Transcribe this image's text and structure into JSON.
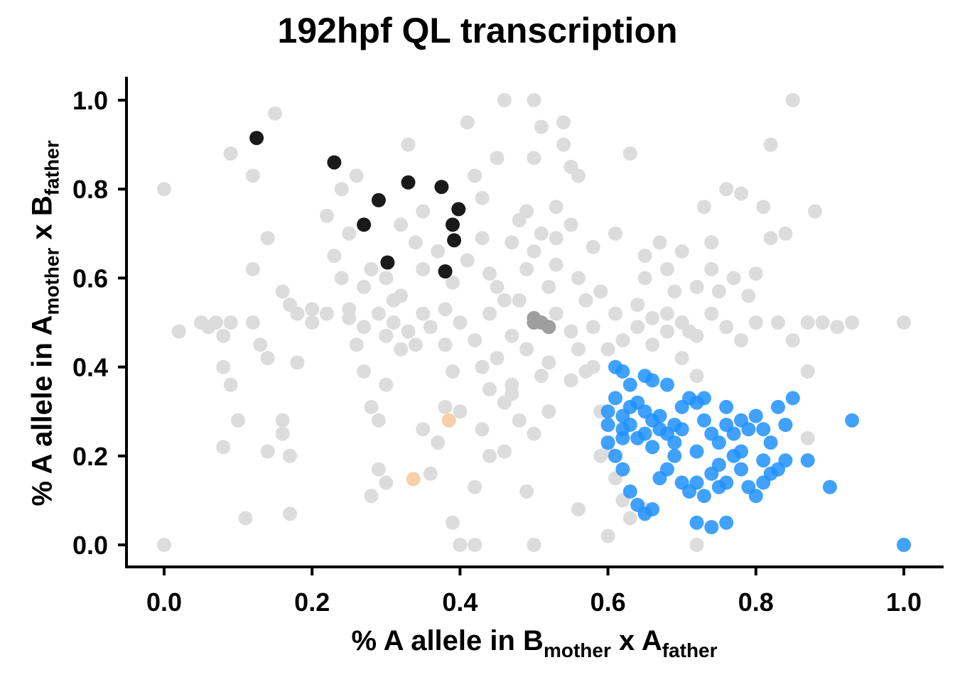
{
  "chart_data": {
    "type": "scatter",
    "title": "192hpf QL transcription",
    "xlabel": {
      "pre": "% A allele in B",
      "sub1": "mother",
      "mid": " x A",
      "sub2": "father"
    },
    "ylabel": {
      "pre": "% A allele in A",
      "sub1": "mother",
      "mid": " x B",
      "sub2": "father"
    },
    "xlim": [
      -0.06,
      1.06
    ],
    "ylim": [
      -0.05,
      1.05
    ],
    "xticks": [
      "0.0",
      "0.2",
      "0.4",
      "0.6",
      "0.8",
      "1.0"
    ],
    "yticks": [
      "0.0",
      "0.2",
      "0.4",
      "0.6",
      "0.8",
      "1.0"
    ],
    "grid": false,
    "legend": "none",
    "colors": {
      "background_points": "#dcdcdc",
      "dark_points": "#1a1a1a",
      "blue_points": "#1e90ff",
      "peach_points": "#f8cfa8"
    },
    "series": [
      {
        "group": "background",
        "color": "#dcdcdc",
        "points": [
          [
            0.0,
            0.8
          ],
          [
            0.0,
            0.0
          ],
          [
            0.02,
            0.48
          ],
          [
            0.05,
            0.5
          ],
          [
            0.06,
            0.49
          ],
          [
            0.07,
            0.5
          ],
          [
            0.08,
            0.47
          ],
          [
            0.09,
            0.5
          ],
          [
            0.08,
            0.4
          ],
          [
            0.09,
            0.36
          ],
          [
            0.08,
            0.22
          ],
          [
            0.1,
            0.28
          ],
          [
            0.09,
            0.88
          ],
          [
            0.12,
            0.83
          ],
          [
            0.15,
            0.97
          ],
          [
            0.12,
            0.5
          ],
          [
            0.12,
            0.62
          ],
          [
            0.13,
            0.45
          ],
          [
            0.14,
            0.42
          ],
          [
            0.14,
            0.69
          ],
          [
            0.14,
            0.21
          ],
          [
            0.16,
            0.28
          ],
          [
            0.16,
            0.25
          ],
          [
            0.17,
            0.2
          ],
          [
            0.16,
            0.57
          ],
          [
            0.17,
            0.54
          ],
          [
            0.18,
            0.52
          ],
          [
            0.18,
            0.41
          ],
          [
            0.2,
            0.53
          ],
          [
            0.11,
            0.06
          ],
          [
            0.17,
            0.07
          ],
          [
            0.2,
            0.5
          ],
          [
            0.22,
            0.52
          ],
          [
            0.22,
            0.74
          ],
          [
            0.23,
            0.65
          ],
          [
            0.24,
            0.6
          ],
          [
            0.24,
            0.8
          ],
          [
            0.25,
            0.7
          ],
          [
            0.26,
            0.83
          ],
          [
            0.25,
            0.53
          ],
          [
            0.27,
            0.58
          ],
          [
            0.28,
            0.62
          ],
          [
            0.27,
            0.39
          ],
          [
            0.28,
            0.31
          ],
          [
            0.29,
            0.28
          ],
          [
            0.3,
            0.36
          ],
          [
            0.29,
            0.17
          ],
          [
            0.28,
            0.11
          ],
          [
            0.3,
            0.14
          ],
          [
            0.31,
            0.55
          ],
          [
            0.32,
            0.44
          ],
          [
            0.32,
            0.72
          ],
          [
            0.33,
            0.9
          ],
          [
            0.34,
            0.68
          ],
          [
            0.35,
            0.75
          ],
          [
            0.35,
            0.26
          ],
          [
            0.36,
            0.16
          ],
          [
            0.37,
            0.23
          ],
          [
            0.38,
            0.31
          ],
          [
            0.38,
            0.45
          ],
          [
            0.39,
            0.39
          ],
          [
            0.4,
            0.5
          ],
          [
            0.4,
            0.3
          ],
          [
            0.41,
            0.95
          ],
          [
            0.42,
            0.83
          ],
          [
            0.43,
            0.78
          ],
          [
            0.44,
            0.61
          ],
          [
            0.42,
            0.13
          ],
          [
            0.43,
            0.26
          ],
          [
            0.44,
            0.2
          ],
          [
            0.45,
            0.87
          ],
          [
            0.46,
            0.55
          ],
          [
            0.46,
            0.21
          ],
          [
            0.47,
            0.34
          ],
          [
            0.46,
            1.0
          ],
          [
            0.48,
            0.73
          ],
          [
            0.49,
            0.12
          ],
          [
            0.5,
            1.0
          ],
          [
            0.5,
            0.66
          ],
          [
            0.5,
            0.87
          ],
          [
            0.51,
            0.94
          ],
          [
            0.52,
            0.58
          ],
          [
            0.53,
            0.76
          ],
          [
            0.54,
            0.95
          ],
          [
            0.54,
            0.9
          ],
          [
            0.55,
            0.85
          ],
          [
            0.56,
            0.83
          ],
          [
            0.57,
            0.39
          ],
          [
            0.58,
            0.67
          ],
          [
            0.59,
            0.3
          ],
          [
            0.6,
            0.21
          ],
          [
            0.61,
            0.7
          ],
          [
            0.62,
            0.46
          ],
          [
            0.63,
            0.88
          ],
          [
            0.64,
            0.54
          ],
          [
            0.65,
            0.6
          ],
          [
            0.66,
            0.45
          ],
          [
            0.67,
            0.68
          ],
          [
            0.68,
            0.52
          ],
          [
            0.69,
            0.57
          ],
          [
            0.7,
            0.42
          ],
          [
            0.71,
            0.48
          ],
          [
            0.72,
            0.38
          ],
          [
            0.73,
            0.76
          ],
          [
            0.74,
            0.68
          ],
          [
            0.75,
            0.57
          ],
          [
            0.76,
            0.8
          ],
          [
            0.77,
            0.6
          ],
          [
            0.78,
            0.79
          ],
          [
            0.79,
            0.56
          ],
          [
            0.8,
            0.61
          ],
          [
            0.81,
            0.76
          ],
          [
            0.82,
            0.69
          ],
          [
            0.83,
            0.5
          ],
          [
            0.84,
            0.7
          ],
          [
            0.85,
            0.46
          ],
          [
            0.85,
            1.0
          ],
          [
            0.87,
            0.5
          ],
          [
            0.88,
            0.75
          ],
          [
            0.89,
            0.5
          ],
          [
            0.91,
            0.49
          ],
          [
            0.93,
            0.5
          ],
          [
            1.0,
            0.5
          ],
          [
            0.82,
            0.9
          ],
          [
            0.87,
            0.39
          ],
          [
            0.87,
            0.24
          ],
          [
            0.42,
            0.46
          ],
          [
            0.44,
            0.52
          ],
          [
            0.45,
            0.42
          ],
          [
            0.47,
            0.47
          ],
          [
            0.48,
            0.55
          ],
          [
            0.49,
            0.44
          ],
          [
            0.52,
            0.41
          ],
          [
            0.53,
            0.52
          ],
          [
            0.55,
            0.48
          ],
          [
            0.56,
            0.44
          ],
          [
            0.57,
            0.55
          ],
          [
            0.58,
            0.49
          ],
          [
            0.6,
            0.44
          ],
          [
            0.61,
            0.52
          ],
          [
            0.43,
            0.4
          ],
          [
            0.45,
            0.58
          ],
          [
            0.47,
            0.36
          ],
          [
            0.49,
            0.62
          ],
          [
            0.51,
            0.38
          ],
          [
            0.53,
            0.63
          ],
          [
            0.55,
            0.37
          ],
          [
            0.56,
            0.6
          ],
          [
            0.58,
            0.4
          ],
          [
            0.59,
            0.57
          ],
          [
            0.38,
            0.53
          ],
          [
            0.36,
            0.49
          ],
          [
            0.35,
            0.52
          ],
          [
            0.34,
            0.45
          ],
          [
            0.33,
            0.48
          ],
          [
            0.31,
            0.5
          ],
          [
            0.3,
            0.47
          ],
          [
            0.29,
            0.52
          ],
          [
            0.27,
            0.49
          ],
          [
            0.26,
            0.45
          ],
          [
            0.25,
            0.51
          ],
          [
            0.64,
            0.49
          ],
          [
            0.66,
            0.51
          ],
          [
            0.68,
            0.48
          ],
          [
            0.7,
            0.5
          ],
          [
            0.72,
            0.47
          ],
          [
            0.74,
            0.52
          ],
          [
            0.76,
            0.49
          ],
          [
            0.78,
            0.46
          ],
          [
            0.8,
            0.5
          ],
          [
            0.52,
            0.3
          ],
          [
            0.5,
            0.25
          ],
          [
            0.48,
            0.28
          ],
          [
            0.46,
            0.32
          ],
          [
            0.44,
            0.35
          ],
          [
            0.51,
            0.7
          ],
          [
            0.49,
            0.75
          ],
          [
            0.47,
            0.68
          ],
          [
            0.53,
            0.69
          ],
          [
            0.55,
            0.72
          ],
          [
            0.62,
            0.1
          ],
          [
            0.65,
            0.08
          ],
          [
            0.6,
            0.02
          ],
          [
            0.63,
            0.06
          ],
          [
            0.72,
            0.0
          ],
          [
            0.5,
            0.0
          ],
          [
            0.4,
            0.0
          ],
          [
            0.42,
            0.0
          ],
          [
            0.39,
            0.05
          ],
          [
            0.56,
            0.08
          ],
          [
            0.59,
            0.2
          ],
          [
            0.61,
            0.15
          ],
          [
            0.35,
            0.62
          ],
          [
            0.37,
            0.66
          ],
          [
            0.39,
            0.59
          ],
          [
            0.41,
            0.64
          ],
          [
            0.43,
            0.69
          ],
          [
            0.3,
            0.6
          ],
          [
            0.32,
            0.56
          ],
          [
            0.65,
            0.65
          ],
          [
            0.68,
            0.62
          ],
          [
            0.7,
            0.66
          ],
          [
            0.72,
            0.58
          ],
          [
            0.74,
            0.62
          ]
        ]
      },
      {
        "group": "center",
        "color": "#9e9e9e",
        "points": [
          [
            0.5,
            0.51
          ],
          [
            0.5,
            0.5
          ],
          [
            0.51,
            0.5
          ],
          [
            0.52,
            0.49
          ]
        ]
      },
      {
        "group": "dark",
        "color": "#1a1a1a",
        "points": [
          [
            0.125,
            0.915
          ],
          [
            0.23,
            0.86
          ],
          [
            0.33,
            0.815
          ],
          [
            0.375,
            0.805
          ],
          [
            0.29,
            0.775
          ],
          [
            0.398,
            0.755
          ],
          [
            0.27,
            0.72
          ],
          [
            0.39,
            0.72
          ],
          [
            0.392,
            0.685
          ],
          [
            0.302,
            0.635
          ],
          [
            0.38,
            0.615
          ]
        ]
      },
      {
        "group": "blue",
        "color": "#1e90ff",
        "points": [
          [
            0.61,
            0.4
          ],
          [
            0.62,
            0.39
          ],
          [
            0.65,
            0.38
          ],
          [
            0.66,
            0.37
          ],
          [
            0.63,
            0.36
          ],
          [
            0.68,
            0.36
          ],
          [
            0.61,
            0.33
          ],
          [
            0.6,
            0.3
          ],
          [
            0.62,
            0.29
          ],
          [
            0.63,
            0.31
          ],
          [
            0.64,
            0.32
          ],
          [
            0.65,
            0.3
          ],
          [
            0.66,
            0.28
          ],
          [
            0.67,
            0.26
          ],
          [
            0.68,
            0.25
          ],
          [
            0.69,
            0.27
          ],
          [
            0.7,
            0.26
          ],
          [
            0.71,
            0.33
          ],
          [
            0.72,
            0.32
          ],
          [
            0.73,
            0.28
          ],
          [
            0.74,
            0.25
          ],
          [
            0.75,
            0.23
          ],
          [
            0.76,
            0.27
          ],
          [
            0.77,
            0.25
          ],
          [
            0.78,
            0.28
          ],
          [
            0.79,
            0.26
          ],
          [
            0.8,
            0.29
          ],
          [
            0.81,
            0.26
          ],
          [
            0.82,
            0.23
          ],
          [
            0.83,
            0.31
          ],
          [
            0.84,
            0.27
          ],
          [
            0.85,
            0.33
          ],
          [
            0.6,
            0.23
          ],
          [
            0.61,
            0.2
          ],
          [
            0.62,
            0.17
          ],
          [
            0.63,
            0.12
          ],
          [
            0.64,
            0.09
          ],
          [
            0.65,
            0.07
          ],
          [
            0.66,
            0.08
          ],
          [
            0.67,
            0.15
          ],
          [
            0.68,
            0.17
          ],
          [
            0.69,
            0.2
          ],
          [
            0.7,
            0.14
          ],
          [
            0.71,
            0.12
          ],
          [
            0.72,
            0.14
          ],
          [
            0.73,
            0.11
          ],
          [
            0.74,
            0.16
          ],
          [
            0.75,
            0.13
          ],
          [
            0.76,
            0.14
          ],
          [
            0.77,
            0.2
          ],
          [
            0.78,
            0.17
          ],
          [
            0.79,
            0.13
          ],
          [
            0.8,
            0.11
          ],
          [
            0.81,
            0.14
          ],
          [
            0.82,
            0.16
          ],
          [
            0.83,
            0.17
          ],
          [
            0.84,
            0.19
          ],
          [
            0.72,
            0.05
          ],
          [
            0.74,
            0.04
          ],
          [
            0.76,
            0.05
          ],
          [
            0.87,
            0.19
          ],
          [
            0.9,
            0.13
          ],
          [
            0.93,
            0.28
          ],
          [
            1.0,
            0.0
          ],
          [
            0.62,
            0.26
          ],
          [
            0.64,
            0.24
          ],
          [
            0.66,
            0.22
          ],
          [
            0.69,
            0.23
          ],
          [
            0.72,
            0.21
          ],
          [
            0.75,
            0.18
          ],
          [
            0.78,
            0.21
          ],
          [
            0.81,
            0.19
          ],
          [
            0.63,
            0.27
          ],
          [
            0.65,
            0.25
          ],
          [
            0.67,
            0.29
          ],
          [
            0.7,
            0.31
          ],
          [
            0.73,
            0.33
          ],
          [
            0.76,
            0.31
          ],
          [
            0.6,
            0.27
          ],
          [
            0.62,
            0.24
          ]
        ]
      },
      {
        "group": "peach",
        "color": "#f8cfa8",
        "points": [
          [
            0.385,
            0.28
          ],
          [
            0.337,
            0.148
          ]
        ]
      }
    ]
  }
}
